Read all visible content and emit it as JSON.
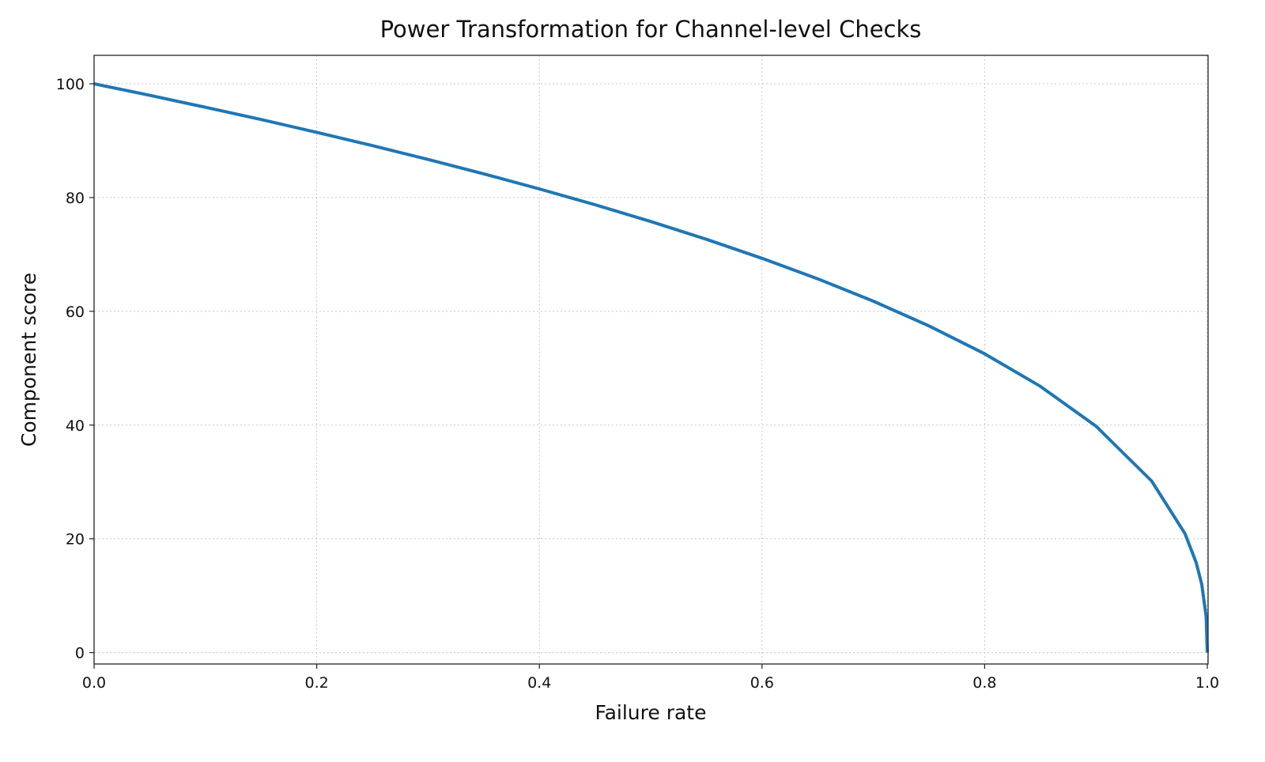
{
  "chart_data": {
    "type": "line",
    "title": "Power Transformation for Channel-level Checks",
    "xlabel": "Failure rate",
    "ylabel": "Component score",
    "xlim": [
      0.0,
      1.0
    ],
    "ylim": [
      -2,
      105
    ],
    "xticks": [
      0.0,
      0.2,
      0.4,
      0.6,
      0.8,
      1.0
    ],
    "xtick_labels": [
      "0.0",
      "0.2",
      "0.4",
      "0.6",
      "0.8",
      "1.0"
    ],
    "yticks": [
      0,
      20,
      40,
      60,
      80,
      100
    ],
    "ytick_labels": [
      "0",
      "20",
      "40",
      "60",
      "80",
      "100"
    ],
    "grid": true,
    "grid_style": "dotted",
    "legend": "none",
    "colors": {
      "line": "#1f77b4",
      "grid": "#c8c8c8",
      "axes": "#222222"
    },
    "series": [
      {
        "x": [
          0.0,
          0.05,
          0.1,
          0.15,
          0.2,
          0.25,
          0.3,
          0.35,
          0.4,
          0.45,
          0.5,
          0.55,
          0.6,
          0.65,
          0.7,
          0.75,
          0.8,
          0.85,
          0.9,
          0.95,
          0.98,
          0.99,
          0.995,
          0.999,
          1.0
        ],
        "y": [
          100,
          97.97,
          95.87,
          93.71,
          91.46,
          89.13,
          86.7,
          84.17,
          81.52,
          78.73,
          75.79,
          72.66,
          69.31,
          65.71,
          61.78,
          57.43,
          52.53,
          46.82,
          39.81,
          30.17,
          20.91,
          15.85,
          12.01,
          6.31,
          0
        ]
      }
    ]
  }
}
